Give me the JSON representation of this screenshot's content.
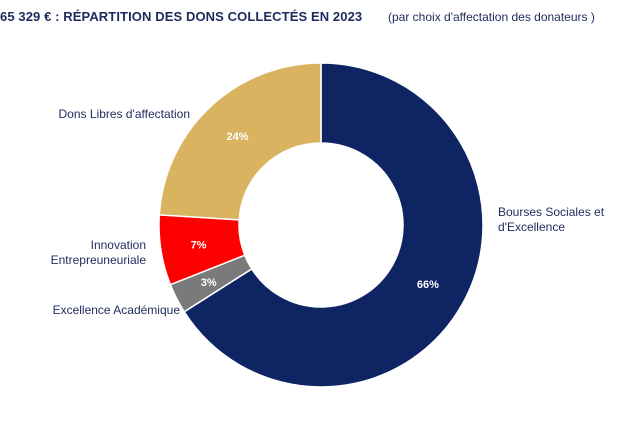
{
  "chart_data": {
    "type": "pie",
    "donut": true,
    "title": "65 329 € : RÉPARTITION DES DONS COLLECTÉS EN 2023",
    "subtitle": "(par choix d'affectation des donateurs )",
    "slices": [
      {
        "label": "Bourses Sociales et d'Excellence",
        "value": 66,
        "value_label": "66%",
        "color": "#0e2463"
      },
      {
        "label": "Excellence Académique",
        "value": 3,
        "value_label": "3%",
        "color": "#7a7a7a"
      },
      {
        "label": "Innovation Entrepreuneuriale",
        "value": 7,
        "value_label": "7%",
        "color": "#ff0000"
      },
      {
        "label": "Dons Libres d'affectation",
        "value": 24,
        "value_label": "24%",
        "color": "#d9b35f"
      }
    ],
    "legend": "outside-labels"
  }
}
